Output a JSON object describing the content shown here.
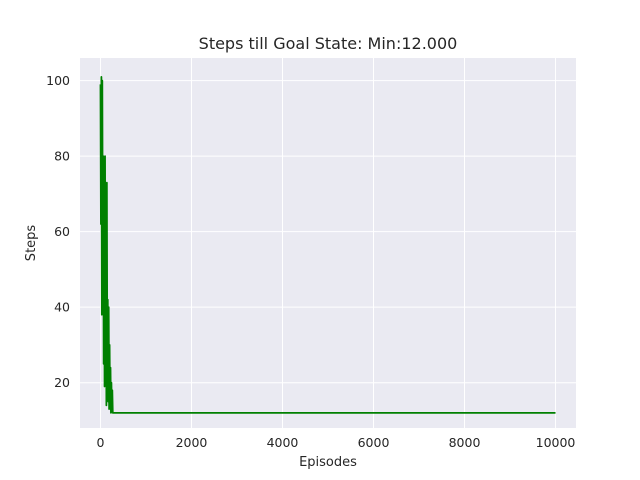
{
  "chart_data": {
    "type": "line",
    "title": "Steps till Goal State: Min:12.000",
    "xlabel": "Episodes",
    "ylabel": "Steps",
    "xlim": [
      -450,
      10450
    ],
    "ylim": [
      8,
      106
    ],
    "xticks": [
      0,
      2000,
      4000,
      6000,
      8000,
      10000
    ],
    "yticks": [
      20,
      40,
      60,
      80,
      100
    ],
    "xtick_labels": [
      "0",
      "2000",
      "4000",
      "6000",
      "8000",
      "10000"
    ],
    "ytick_labels": [
      "20",
      "40",
      "60",
      "80",
      "100"
    ],
    "grid": true,
    "style": "seaborn-darkgrid",
    "series": [
      {
        "color": "#008000",
        "x": [
          0,
          10,
          20,
          30,
          40,
          50,
          60,
          70,
          80,
          90,
          100,
          110,
          120,
          130,
          140,
          150,
          160,
          170,
          180,
          190,
          200,
          210,
          220,
          230,
          240,
          250,
          260,
          270,
          280,
          300,
          1000,
          2000,
          3000,
          4000,
          5000,
          6000,
          7000,
          8000,
          9000,
          10000
        ],
        "y": [
          99,
          62,
          101,
          38,
          100,
          55,
          80,
          25,
          73,
          19,
          80,
          30,
          64,
          14,
          73,
          22,
          42,
          15,
          40,
          13,
          30,
          14,
          24,
          12,
          20,
          13,
          18,
          12,
          12,
          12,
          12,
          12,
          12,
          12,
          12,
          12,
          12,
          12,
          12,
          12
        ]
      }
    ]
  }
}
